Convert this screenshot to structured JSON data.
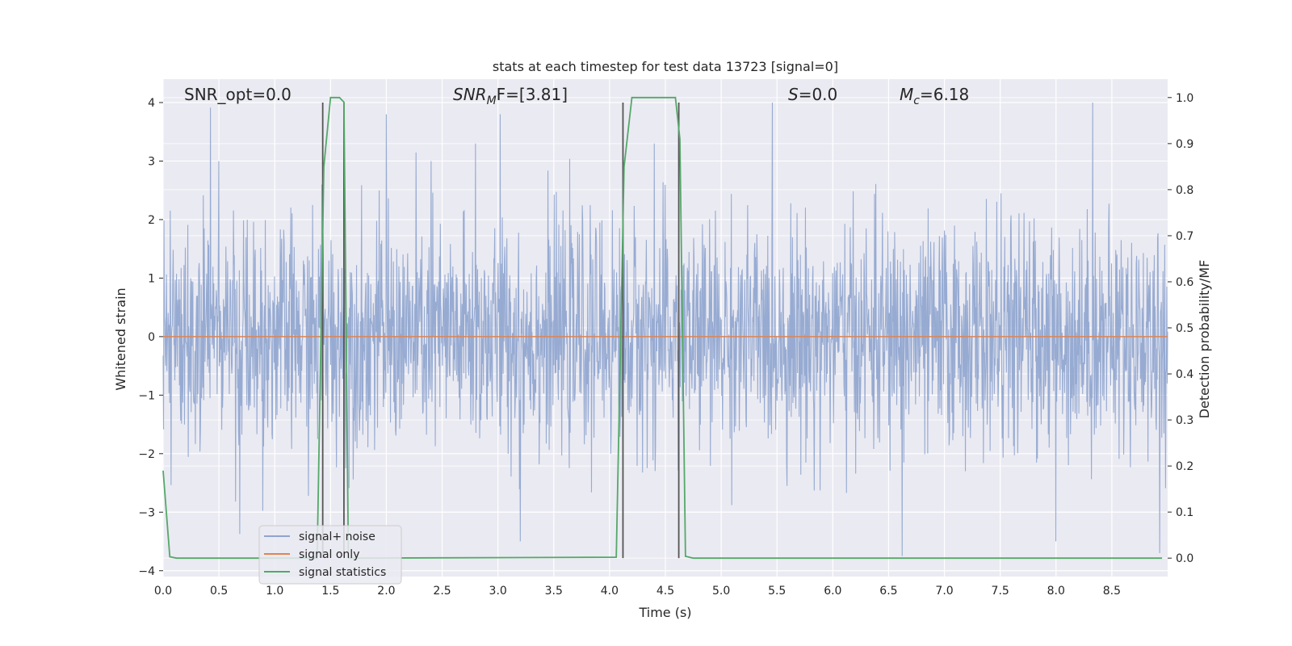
{
  "chart_data": {
    "type": "line",
    "title": "stats at each timestep for test data 13723 [signal=0]",
    "xlabel": "Time (s)",
    "ylabel": "Whitened strain",
    "y2label": "Detection probability/MF",
    "xlim": [
      0,
      9
    ],
    "ylim": [
      -4.1,
      4.4
    ],
    "y2lim": [
      -0.04,
      1.04
    ],
    "xticks": [
      0.0,
      0.5,
      1.0,
      1.5,
      2.0,
      2.5,
      3.0,
      3.5,
      4.0,
      4.5,
      5.0,
      5.5,
      6.0,
      6.5,
      7.0,
      7.5,
      8.0,
      8.5
    ],
    "xtick_labels": [
      "0.0",
      "0.5",
      "1.0",
      "1.5",
      "2.0",
      "2.5",
      "3.0",
      "3.5",
      "4.0",
      "4.5",
      "5.0",
      "5.5",
      "6.0",
      "6.5",
      "7.0",
      "7.5",
      "8.0",
      "8.5"
    ],
    "yticks": [
      -4,
      -3,
      -2,
      -1,
      0,
      1,
      2,
      3,
      4
    ],
    "ytick_labels": [
      "−4",
      "−3",
      "−2",
      "−1",
      "0",
      "1",
      "2",
      "3",
      "4"
    ],
    "y2ticks": [
      0.0,
      0.1,
      0.2,
      0.3,
      0.4,
      0.5,
      0.6,
      0.7,
      0.8,
      0.9,
      1.0
    ],
    "y2tick_labels": [
      "0.0",
      "0.1",
      "0.2",
      "0.3",
      "0.4",
      "0.5",
      "0.6",
      "0.7",
      "0.8",
      "0.9",
      "1.0"
    ],
    "grid": true,
    "legend_position": "lower-left",
    "annotations": {
      "snr_opt": "SNR_opt=0.0",
      "snr_mf_main": "SNR",
      "snr_mf_sub": "M",
      "snr_mf_rest": "F=[3.81]",
      "s_main": "S",
      "s_rest": "=0.0",
      "mc_main": "M",
      "mc_sub": "c",
      "mc_rest": "=6.18"
    },
    "series": [
      {
        "name": "signal+ noise",
        "axis": "left",
        "color": "#8fa5cf",
        "noise_envelope": {
          "t_start": 0.0,
          "t_end": 9.0,
          "typical_max": 2.0,
          "typical_min": -2.0,
          "peak_max": 4.0,
          "peak_min": -3.7
        },
        "peaks": [
          [
            1.42,
            2.6
          ],
          [
            2.0,
            3.8
          ],
          [
            3.02,
            3.8
          ],
          [
            2.8,
            3.3
          ],
          [
            8.33,
            4.0
          ],
          [
            4.4,
            3.3
          ],
          [
            2.4,
            3.0
          ],
          [
            0.5,
            3.0
          ],
          [
            3.2,
            -3.5
          ],
          [
            6.62,
            -3.75
          ],
          [
            8.93,
            -3.7
          ],
          [
            8.0,
            -3.5
          ]
        ]
      },
      {
        "name": "signal only",
        "axis": "left",
        "color": "#dd8452",
        "x": [
          0.0,
          9.0
        ],
        "y": [
          0.0,
          0.0
        ]
      },
      {
        "name": "signal statistics",
        "axis": "right",
        "color": "#55a868",
        "x": [
          0.0,
          0.06,
          0.12,
          1.38,
          1.44,
          1.5,
          1.58,
          1.62,
          1.66,
          1.7,
          4.06,
          4.13,
          4.2,
          4.59,
          4.63,
          4.68,
          4.75,
          8.95
        ],
        "y": [
          0.19,
          0.003,
          0.0,
          0.0,
          0.85,
          1.0,
          1.0,
          0.99,
          0.0,
          0.0,
          0.002,
          0.85,
          1.0,
          1.0,
          0.91,
          0.004,
          0.0,
          0.0
        ]
      }
    ],
    "vertical_markers": [
      1.43,
      1.62,
      4.12,
      4.62
    ]
  }
}
